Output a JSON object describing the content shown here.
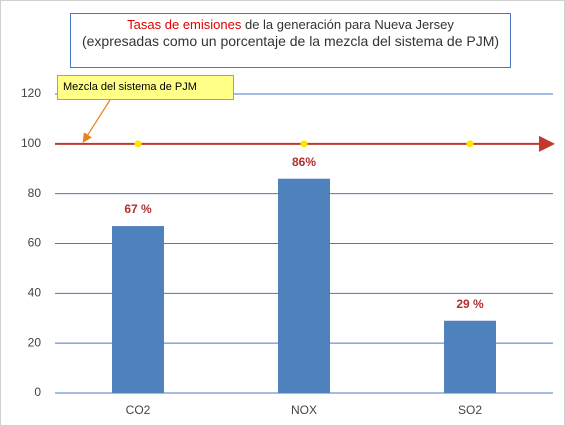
{
  "chart_data": {
    "type": "bar",
    "title_highlight": "Tasas de emisiones",
    "title": "de la generación para Nueva Jersey",
    "subtitle": "(expresadas como un porcentaje de la mezcla del sistema de PJM)",
    "categories": [
      "CO2",
      "NOX",
      "SO2"
    ],
    "values": [
      67,
      86,
      29
    ],
    "value_labels": [
      "67 %",
      "86%",
      "29 %"
    ],
    "color": "#4f81bd",
    "ylim": [
      0,
      120
    ],
    "yticks": [
      0,
      20,
      40,
      60,
      80,
      100,
      120
    ],
    "grid": true,
    "reference_line": {
      "value": 100,
      "label": "Mezcla del sistema de PJM",
      "color": "#c0392b",
      "marker_color": "#ffe600"
    }
  }
}
